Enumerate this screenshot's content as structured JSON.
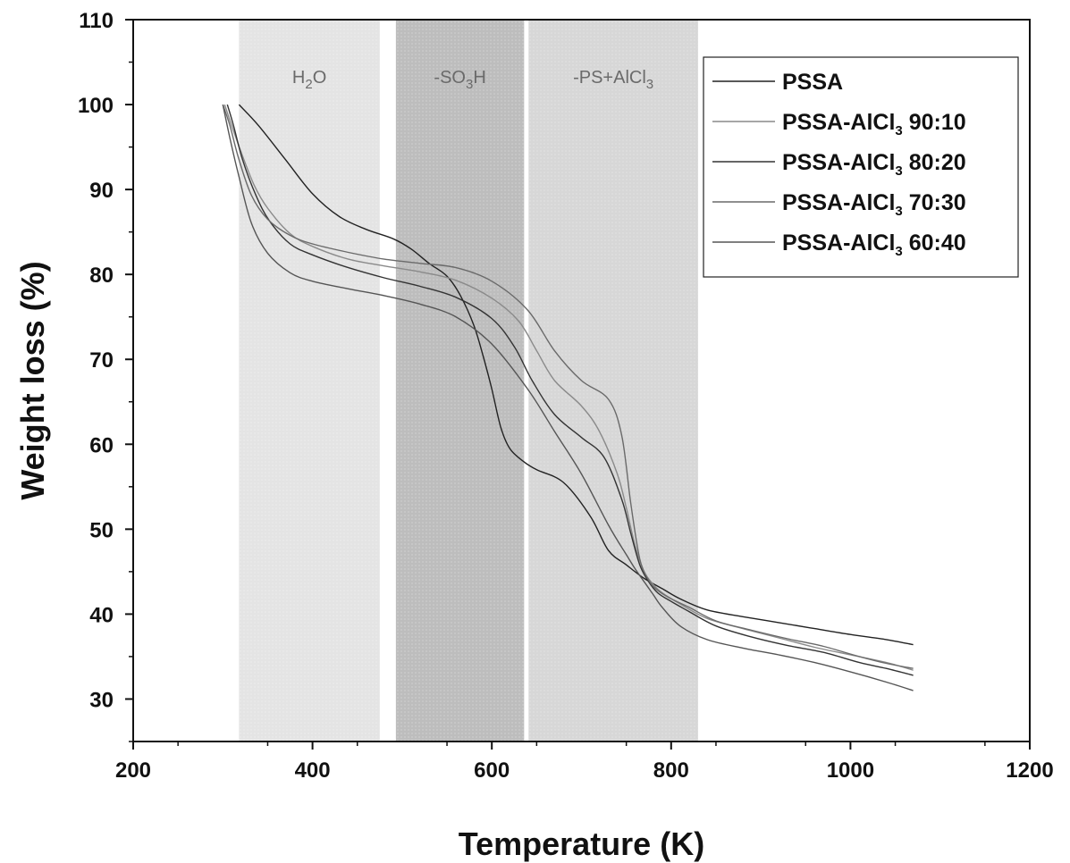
{
  "chart_data": {
    "type": "line",
    "xlabel": "Temperature (K)",
    "ylabel": "Weight loss (%)",
    "xlim": [
      200,
      1200
    ],
    "ylim": [
      25,
      110
    ],
    "xticks": [
      "200",
      "400",
      "600",
      "800",
      "1000",
      "1200"
    ],
    "yticks": [
      "30",
      "40",
      "50",
      "60",
      "70",
      "80",
      "90",
      "100",
      "110"
    ],
    "grid": false,
    "legend_position": "top-right",
    "regions": [
      {
        "label_main": "H",
        "label_sub": "2",
        "label_tail": "O",
        "x_start": 318,
        "x_end": 475,
        "color": "#e4e4e4"
      },
      {
        "label_main": "-SO",
        "label_sub": "3",
        "label_tail": "H",
        "x_start": 493,
        "x_end": 636,
        "color": "#bdbdbd"
      },
      {
        "label_main": "-PS+AlCl",
        "label_sub": "3",
        "label_tail": "",
        "x_start": 641,
        "x_end": 830,
        "color": "#d7d7d7"
      }
    ],
    "series": [
      {
        "name": "PSSA",
        "legend_main": "PSSA",
        "legend_sub": "",
        "legend_tail": "",
        "color": "#222222",
        "x": [
          318,
          340,
          370,
          400,
          430,
          460,
          490,
          510,
          530,
          550,
          565,
          580,
          590,
          600,
          610,
          620,
          635,
          650,
          680,
          710,
          730,
          750,
          770,
          790,
          810,
          840,
          880,
          920,
          960,
          1000,
          1040,
          1070
        ],
        "y": [
          100,
          97.5,
          93.5,
          89.5,
          86.8,
          85.3,
          84.2,
          83,
          81.3,
          79.8,
          77.5,
          74,
          70.5,
          66.5,
          62,
          59.5,
          58,
          57,
          55.5,
          51.5,
          47.5,
          45.8,
          44.2,
          43,
          41.8,
          40.5,
          39.7,
          39,
          38.3,
          37.6,
          37,
          36.4
        ]
      },
      {
        "name": "PSSA-AlCl3 90:10",
        "legend_main": "PSSA-AlCl",
        "legend_sub": "3",
        "legend_tail": " 90:10",
        "color": "#8a8a8a",
        "x": [
          302,
          310,
          320,
          335,
          350,
          375,
          400,
          440,
          480,
          520,
          560,
          600,
          630,
          650,
          670,
          700,
          720,
          740,
          750,
          760,
          770,
          780,
          790,
          810,
          840,
          880,
          920,
          960,
          1000,
          1040,
          1070
        ],
        "y": [
          100,
          97.5,
          94.5,
          90.5,
          87.8,
          84.8,
          83.3,
          81.8,
          81,
          80.3,
          79.3,
          77.2,
          74.5,
          71,
          67.5,
          64.5,
          61.5,
          56.5,
          52.5,
          48,
          45,
          43.5,
          42.5,
          41.2,
          39.5,
          38.3,
          37.2,
          36.1,
          35.2,
          34.3,
          33.4
        ]
      },
      {
        "name": "PSSA-AlCl3 80:20",
        "legend_main": "PSSA-AlCl",
        "legend_sub": "3",
        "legend_tail": " 80:20",
        "color": "#333333",
        "x": [
          305,
          312,
          322,
          337,
          352,
          375,
          400,
          440,
          480,
          520,
          560,
          600,
          625,
          645,
          670,
          700,
          725,
          745,
          755,
          765,
          775,
          785,
          800,
          820,
          850,
          890,
          930,
          970,
          1010,
          1040,
          1070
        ],
        "y": [
          100,
          97.5,
          93.5,
          89.3,
          86.3,
          83.6,
          82.3,
          80.8,
          79.6,
          78.6,
          77.3,
          74.8,
          71.5,
          67.5,
          63.5,
          60.8,
          58.5,
          53.5,
          49.5,
          45.8,
          43.8,
          42.5,
          41.5,
          40.3,
          38.6,
          37.3,
          36.3,
          35.5,
          34.3,
          33.6,
          32.8
        ]
      },
      {
        "name": "PSSA-AlCl3 70:30",
        "legend_main": "PSSA-AlCl",
        "legend_sub": "3",
        "legend_tail": " 70:30",
        "color": "#6a6a6a",
        "x": [
          300,
          308,
          318,
          332,
          350,
          375,
          400,
          440,
          480,
          520,
          560,
          600,
          640,
          670,
          700,
          730,
          745,
          755,
          765,
          775,
          785,
          800,
          820,
          850,
          890,
          930,
          970,
          1010,
          1040,
          1070
        ],
        "y": [
          100,
          97.5,
          93.5,
          89.3,
          86.5,
          84.6,
          83.6,
          82.6,
          81.8,
          81.3,
          80.8,
          79.2,
          75.8,
          71,
          67.5,
          65.3,
          61,
          53,
          46.5,
          44,
          42.8,
          41.8,
          40.8,
          39.2,
          38.1,
          37.1,
          36.2,
          35,
          34.2,
          33.6
        ]
      },
      {
        "name": "PSSA-AlCl3 60:40",
        "legend_main": "PSSA-AlCl",
        "legend_sub": "3",
        "legend_tail": " 60:40",
        "color": "#555555",
        "x": [
          300,
          308,
          318,
          332,
          350,
          375,
          400,
          440,
          480,
          520,
          560,
          600,
          640,
          670,
          700,
          730,
          750,
          760,
          770,
          780,
          790,
          810,
          840,
          880,
          920,
          960,
          1000,
          1040,
          1070
        ],
        "y": [
          100,
          96,
          91.5,
          86,
          82.5,
          80.2,
          79.2,
          78.3,
          77.5,
          76.5,
          75,
          71.8,
          66.5,
          61.5,
          56.5,
          50.5,
          47,
          45.3,
          43.8,
          42.3,
          40.8,
          38.6,
          37,
          36,
          35.2,
          34.3,
          33.2,
          32,
          31
        ]
      }
    ]
  }
}
